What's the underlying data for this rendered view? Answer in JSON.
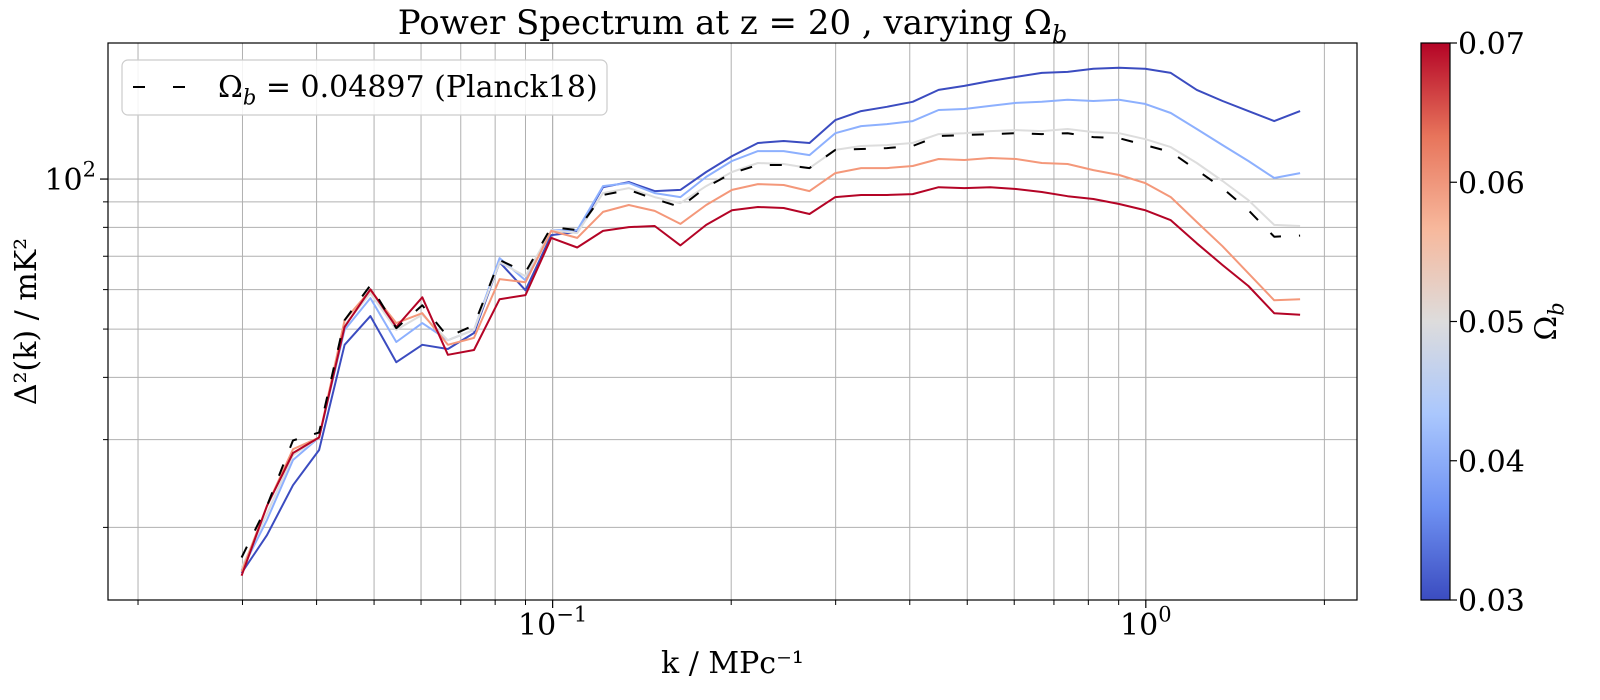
{
  "chart_data": {
    "type": "line",
    "title": "Power Spectrum at z = 20 , varying Ω",
    "title_subscript": "b",
    "x_label": "k / MPc⁻¹",
    "y_label": "Δ²(k) / mK²",
    "xscale": "log",
    "yscale": "log",
    "grid": "both",
    "legend_loc": "upper left",
    "xlim": [
      0.0178,
      2.27
    ],
    "ylim": [
      14.3,
      187.5
    ],
    "xticks": [
      {
        "value": 0.1,
        "label": "10",
        "exponent": "−1"
      },
      {
        "value": 1,
        "label": "10",
        "exponent": "0"
      }
    ],
    "xminorticks": [
      0.02,
      0.03,
      0.04,
      0.05,
      0.06,
      0.07,
      0.08,
      0.09,
      0.2,
      0.3,
      0.4,
      0.5,
      0.6,
      0.7,
      0.8,
      0.9,
      2
    ],
    "yticks": [
      {
        "value": 100,
        "label": "10",
        "exponent": "2"
      }
    ],
    "yminorticks": [
      20,
      30,
      40,
      50,
      60,
      70,
      80,
      90
    ],
    "x": [
      0.0299,
      0.033,
      0.0365,
      0.0404,
      0.0446,
      0.0493,
      0.0545,
      0.0603,
      0.0666,
      0.0737,
      0.0814,
      0.09,
      0.0995,
      0.11,
      0.1216,
      0.1344,
      0.1486,
      0.1642,
      0.1815,
      0.2006,
      0.2218,
      0.2452,
      0.271,
      0.2996,
      0.3312,
      0.3661,
      0.4046,
      0.4473,
      0.4944,
      0.5465,
      0.6041,
      0.6678,
      0.7382,
      0.816,
      0.902,
      0.9973,
      1.102,
      1.219,
      1.347,
      1.489,
      1.646,
      1.82
    ],
    "series": [
      {
        "color": "#3b4cc0",
        "linestyle": "solid",
        "values": [
          16.2,
          19.3,
          24.3,
          28.6,
          46.5,
          53.1,
          42.9,
          46.5,
          45.6,
          49.1,
          68.1,
          59.8,
          77.2,
          78.3,
          96.3,
          98.6,
          94.6,
          95.1,
          103.3,
          111.2,
          118.1,
          119.2,
          118.1,
          131.3,
          136.9,
          139.6,
          142.9,
          151.0,
          153.8,
          157.3,
          160.3,
          163.3,
          164.1,
          166.4,
          167.2,
          166.4,
          163.3,
          151.0,
          143.4,
          136.9,
          130.7,
          136.9
        ]
      },
      {
        "color": "#8db0fe",
        "linestyle": "solid",
        "values": [
          16.4,
          20.7,
          27.3,
          30.3,
          49.8,
          57.7,
          47.1,
          51.4,
          47.5,
          49.8,
          69.4,
          62.6,
          79.0,
          79.0,
          96.8,
          98.2,
          93.7,
          92.0,
          101.0,
          108.7,
          113.8,
          113.8,
          111.7,
          123.6,
          127.7,
          128.9,
          130.7,
          137.6,
          138.2,
          140.2,
          142.2,
          142.9,
          144.2,
          143.4,
          144.2,
          141.5,
          135.7,
          126.0,
          117.0,
          108.7,
          100.5,
          102.8
        ]
      },
      {
        "color": "#dddddd",
        "linestyle": "solid",
        "values": [
          16.6,
          21.3,
          27.9,
          30.3,
          50.9,
          59.0,
          49.8,
          53.4,
          47.5,
          49.8,
          68.1,
          63.8,
          79.0,
          77.9,
          93.7,
          95.9,
          92.0,
          89.5,
          96.8,
          103.3,
          107.7,
          107.2,
          105.2,
          114.4,
          116.5,
          117.0,
          118.1,
          123.1,
          123.6,
          124.8,
          125.4,
          124.8,
          126.0,
          124.2,
          123.6,
          120.3,
          115.9,
          107.7,
          99.1,
          90.7,
          80.9,
          80.5
        ]
      },
      {
        "color": "#f4987a",
        "linestyle": "solid",
        "values": [
          16.3,
          22.1,
          28.7,
          30.3,
          52.1,
          59.8,
          51.4,
          53.8,
          46.5,
          48.0,
          63.0,
          62.1,
          78.7,
          76.2,
          85.9,
          88.7,
          86.3,
          81.3,
          88.7,
          95.1,
          97.7,
          97.3,
          94.6,
          102.8,
          105.2,
          105.2,
          106.2,
          109.7,
          109.2,
          110.2,
          109.7,
          107.7,
          107.2,
          104.2,
          101.9,
          98.2,
          92.0,
          82.0,
          73.3,
          64.7,
          57.1,
          57.4
        ]
      },
      {
        "color": "#b40426",
        "linestyle": "solid",
        "values": [
          16.0,
          22.1,
          28.2,
          30.3,
          50.5,
          60.1,
          50.5,
          57.9,
          44.4,
          45.4,
          57.4,
          58.5,
          76.2,
          72.9,
          78.7,
          80.1,
          80.5,
          73.6,
          80.9,
          86.6,
          87.9,
          87.5,
          85.1,
          92.0,
          92.9,
          92.9,
          93.3,
          96.3,
          95.9,
          96.3,
          95.5,
          94.2,
          92.4,
          91.2,
          89.1,
          86.6,
          82.7,
          74.3,
          67.2,
          61.0,
          53.8,
          53.4
        ]
      },
      {
        "name": "Ω",
        "name_subscript": "b",
        "name_suffix": " = 0.04897 (Planck18)",
        "color": "#000000",
        "linestyle": "dashed",
        "values": [
          17.4,
          22.1,
          29.9,
          31.0,
          52.1,
          61.2,
          50.2,
          55.8,
          48.2,
          50.9,
          68.8,
          65.0,
          80.1,
          79.0,
          92.9,
          95.1,
          91.2,
          87.9,
          96.3,
          102.8,
          106.7,
          106.7,
          105.2,
          114.4,
          114.9,
          115.4,
          116.5,
          122.0,
          122.5,
          123.1,
          123.6,
          123.1,
          123.6,
          121.4,
          120.8,
          117.0,
          113.3,
          104.2,
          95.9,
          86.6,
          76.6,
          77.0
        ]
      }
    ],
    "colorbar": {
      "label": "Ω",
      "label_subscript": "b",
      "lim": [
        0.03,
        0.07
      ],
      "ticks": [
        0.03,
        0.04,
        0.05,
        0.06,
        0.07
      ],
      "colormap": [
        "#3b4cc0",
        "#6f92f3",
        "#aac7fd",
        "#dddcdc",
        "#f7b89c",
        "#e7745b",
        "#b40426"
      ]
    }
  }
}
